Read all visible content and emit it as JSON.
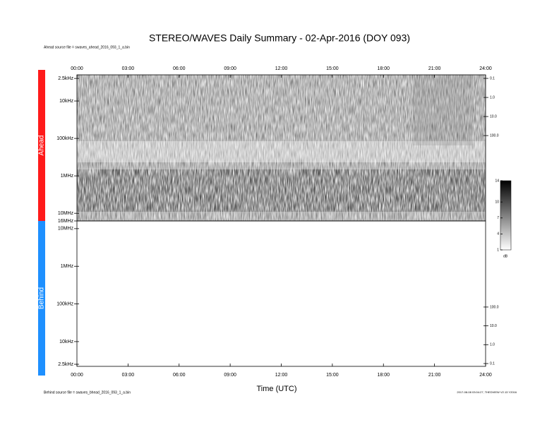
{
  "chart_data": [
    {
      "type": "spectrogram",
      "title": "STEREO/WAVES Daily Summary - 02-Apr-2016 (DOY 093)",
      "subtitle": "Ahead source file = swaves_ahead_2016_093_1_a.bin",
      "label": "Ahead",
      "label_color": "#ff1a1a",
      "xlim": [
        0,
        24
      ],
      "xticks": [
        {
          "value": 0,
          "label": "00:00"
        },
        {
          "value": 3,
          "label": "03:00"
        },
        {
          "value": 6,
          "label": "06:00"
        },
        {
          "value": 9,
          "label": "09:00"
        },
        {
          "value": 12,
          "label": "12:00"
        },
        {
          "value": 15,
          "label": "15:00"
        },
        {
          "value": 18,
          "label": "18:00"
        },
        {
          "value": 21,
          "label": "21:00"
        },
        {
          "value": 24,
          "label": "24:00"
        }
      ],
      "xticks_position": "top",
      "ylog": true,
      "y_reversed": true,
      "ylim": [
        2000,
        16000000
      ],
      "yticks": [
        {
          "value": 2500,
          "label": "2.5kHz"
        },
        {
          "value": 10000,
          "label": "10kHz"
        },
        {
          "value": 100000,
          "label": "100kHz"
        },
        {
          "value": 1000000,
          "label": "1MHz"
        },
        {
          "value": 10000000,
          "label": "10MHz"
        },
        {
          "value": 16000000,
          "label": "16MHz"
        }
      ],
      "y2lim": [
        0.065,
        3000000
      ],
      "y2ticks": [
        0.1,
        {
          "value": 1,
          "label": "1.0"
        },
        {
          "value": 10,
          "label": "10.0"
        },
        {
          "value": 100,
          "label": "100.0"
        }
      ],
      "colorbar": {
        "lim": [
          1,
          14
        ],
        "ticks": [
          1,
          4,
          7,
          10,
          14
        ],
        "label": "dB"
      }
    },
    {
      "type": "spectrogram",
      "label": "Behind",
      "label_color": "#1e90ff",
      "xlabel": "Time (UTC)",
      "footnote": "Behind source file = swaves_bhead_2016_093_1_a.bin",
      "note": "2017-08-08 03:04:27, THEDVIEW V2.13 Y2016",
      "xlim": [
        0,
        24
      ],
      "xticks": [
        {
          "value": 0,
          "label": "00:00"
        },
        {
          "value": 3,
          "label": "03:00"
        },
        {
          "value": 6,
          "label": "06:00"
        },
        {
          "value": 9,
          "label": "09:00"
        },
        {
          "value": 12,
          "label": "12:00"
        },
        {
          "value": 15,
          "label": "15:00"
        },
        {
          "value": 18,
          "label": "18:00"
        },
        {
          "value": 21,
          "label": "21:00"
        },
        {
          "value": 24,
          "label": "24:00"
        }
      ],
      "xticks_position": "bottom",
      "ylog": true,
      "y_reversed": false,
      "ylim": [
        2200,
        16000000
      ],
      "yticks": [
        {
          "value": 2500,
          "label": "2.5kHz"
        },
        {
          "value": 10000,
          "label": "10kHz"
        },
        {
          "value": 100000,
          "label": "100kHz"
        },
        {
          "value": 1000000,
          "label": "1MHz"
        },
        {
          "value": 10000000,
          "label": "10MHz"
        }
      ],
      "y2lim": [
        0.071,
        3700000
      ],
      "y2ticks": [
        0.1,
        {
          "value": 1,
          "label": "1.0"
        },
        {
          "value": 10,
          "label": "10.0"
        },
        {
          "value": 100,
          "label": "100.0"
        }
      ]
    }
  ]
}
